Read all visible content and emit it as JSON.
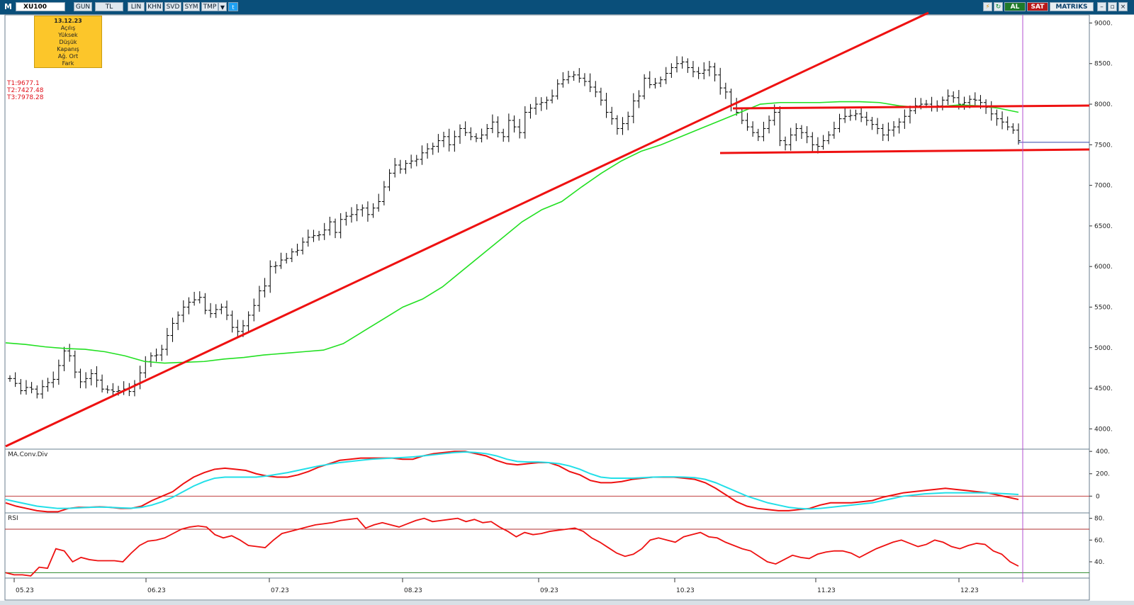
{
  "toolbar": {
    "menu_label": "M",
    "symbol": "XU100",
    "buttons": [
      "GUN",
      "TL",
      "LIN",
      "KHN",
      "SVD",
      "SYM",
      "TMP"
    ],
    "buy_label": "AL",
    "sell_label": "SAT",
    "brand": "MATRIKS",
    "icons": [
      "chevron-down-icon",
      "twitter-icon",
      "lightning-icon",
      "refresh-icon",
      "minimize-icon",
      "restore-icon",
      "close-icon"
    ]
  },
  "info_box": {
    "date": "13.12.23",
    "fields": [
      "Açılış",
      "Yüksek",
      "Düşük",
      "Kapanış",
      "Ağ. Ort",
      "Fark"
    ]
  },
  "trend_labels": [
    "T1:9677.1",
    "T2:7427.48",
    "T3:7978.28"
  ],
  "panels": {
    "macd_label": "MA.Conv.Div",
    "rsi_label": "RSI"
  },
  "colors": {
    "price_bars": "#000000",
    "moving_average": "#22e022",
    "trend_lines": "#ee1111",
    "macd_line": "#ee1111",
    "signal_line": "#22dfe8",
    "rsi_line": "#ee1111",
    "cursor_line": "#b34fd0",
    "info_box": "#fcc62a"
  },
  "chart_data": [
    {
      "type": "line",
      "name": "price",
      "x_ticks": [
        "05.23",
        "06.23",
        "07.23",
        "08.23",
        "09.23",
        "10.23",
        "11.23",
        "12.23"
      ],
      "y_ticks": [
        "9000.",
        "8500.",
        "8000.",
        "7500.",
        "7000.",
        "6500.",
        "6000.",
        "5500.",
        "5000.",
        "4500.",
        "4000."
      ],
      "ylim": [
        3750,
        9100
      ],
      "ohlc_bars": "daily OHLC bars",
      "close_approx": [
        4620,
        4560,
        4470,
        4510,
        4490,
        4430,
        4520,
        4570,
        4610,
        4780,
        4960,
        4900,
        4700,
        4580,
        4620,
        4680,
        4600,
        4490,
        4480,
        4460,
        4470,
        4490,
        4460,
        4550,
        4690,
        4830,
        4900,
        4910,
        4980,
        5150,
        5300,
        5400,
        5500,
        5560,
        5590,
        5620,
        5460,
        5420,
        5470,
        5500,
        5400,
        5250,
        5200,
        5270,
        5400,
        5520,
        5700,
        5760,
        6000,
        6010,
        6080,
        6100,
        6180,
        6200,
        6300,
        6360,
        6380,
        6390,
        6450,
        6550,
        6420,
        6580,
        6620,
        6640,
        6700,
        6720,
        6640,
        6720,
        6800,
        6980,
        7150,
        7250,
        7200,
        7270,
        7300,
        7320,
        7400,
        7450,
        7480,
        7550,
        7600,
        7500,
        7600,
        7700,
        7650,
        7600,
        7580,
        7620,
        7700,
        7780,
        7650,
        7600,
        7800,
        7720,
        7650,
        7900,
        7950,
        8000,
        8020,
        8050,
        8100,
        8250,
        8300,
        8340,
        8360,
        8320,
        8280,
        8210,
        8150,
        8050,
        7900,
        7820,
        7700,
        7760,
        7850,
        8040,
        8100,
        8320,
        8240,
        8260,
        8300,
        8380,
        8450,
        8500,
        8520,
        8450,
        8400,
        8380,
        8420,
        8460,
        8360,
        8200,
        8150,
        8000,
        7900,
        7800,
        7720,
        7650,
        7600,
        7700,
        7800,
        7900,
        7550,
        7500,
        7620,
        7700,
        7650,
        7600,
        7500,
        7480,
        7550,
        7620,
        7700,
        7820,
        7850,
        7860,
        7880,
        7840,
        7800,
        7750,
        7700,
        7620,
        7680,
        7720,
        7780,
        7850,
        7920,
        7980,
        8000,
        8000,
        7960,
        7980,
        8050,
        8100,
        8080,
        8000,
        8020,
        8060,
        8050,
        8020,
        7960,
        7880,
        7820,
        7780,
        7720,
        7680,
        7550
      ],
      "moving_average_approx": [
        5060,
        5040,
        5010,
        4990,
        4980,
        4950,
        4900,
        4830,
        4810,
        4820,
        4830,
        4860,
        4880,
        4910,
        4930,
        4950,
        4970,
        5050,
        5200,
        5350,
        5500,
        5600,
        5750,
        5950,
        6150,
        6350,
        6550,
        6700,
        6800,
        6980,
        7150,
        7300,
        7420,
        7500,
        7600,
        7700,
        7800,
        7900,
        8000,
        8020,
        8020,
        8020,
        8030,
        8030,
        8020,
        7980,
        7960,
        7970,
        7990,
        7980,
        7950,
        7900
      ],
      "trend_lines": [
        {
          "name": "T1",
          "from": [
            "05.23",
            3750
          ],
          "to": [
            "11.23",
            9100
          ]
        },
        {
          "name": "T2",
          "from": [
            "10.23",
            7400
          ],
          "to": [
            "12.23",
            7440
          ]
        },
        {
          "name": "T3",
          "from": [
            "10.23",
            7950
          ],
          "to": [
            "12.23",
            7990
          ]
        }
      ],
      "last_value_line": 7530
    },
    {
      "type": "line",
      "name": "MA.Conv.Div",
      "y_ticks": [
        "400.",
        "200.",
        "0"
      ],
      "ylim": [
        -150,
        420
      ],
      "series": [
        {
          "values": [
            -60,
            -90,
            -110,
            -130,
            -140,
            -140,
            -110,
            -100,
            -100,
            -95,
            -100,
            -110,
            -110,
            -90,
            -40,
            0,
            40,
            110,
            170,
            210,
            240,
            250,
            240,
            230,
            200,
            180,
            170,
            170,
            190,
            220,
            260,
            290,
            320,
            330,
            340,
            340,
            340,
            340,
            330,
            330,
            360,
            380,
            390,
            400,
            400,
            380,
            360,
            320,
            290,
            280,
            290,
            300,
            300,
            270,
            220,
            190,
            140,
            120,
            120,
            130,
            150,
            160,
            170,
            170,
            170,
            160,
            150,
            120,
            70,
            10,
            -50,
            -90,
            -110,
            -120,
            -130,
            -130,
            -120,
            -110,
            -80,
            -60,
            -60,
            -60,
            -50,
            -40,
            -10,
            10,
            30,
            40,
            50,
            60,
            70,
            60,
            50,
            40,
            30,
            10,
            -10,
            -30
          ]
        },
        {
          "values": [
            -30,
            -50,
            -70,
            -90,
            -100,
            -110,
            -110,
            -105,
            -100,
            -98,
            -100,
            -105,
            -108,
            -100,
            -80,
            -50,
            -10,
            40,
            90,
            130,
            160,
            170,
            170,
            170,
            170,
            180,
            195,
            210,
            230,
            250,
            270,
            285,
            300,
            310,
            320,
            330,
            335,
            340,
            345,
            350,
            360,
            370,
            380,
            390,
            395,
            390,
            380,
            360,
            330,
            310,
            305,
            305,
            300,
            290,
            270,
            240,
            200,
            170,
            160,
            160,
            160,
            165,
            170,
            172,
            172,
            170,
            165,
            150,
            120,
            80,
            40,
            0,
            -30,
            -60,
            -80,
            -100,
            -110,
            -115,
            -110,
            -100,
            -90,
            -80,
            -70,
            -60,
            -40,
            -20,
            0,
            10,
            20,
            25,
            30,
            30,
            30,
            30,
            28,
            25,
            20,
            15
          ]
        }
      ]
    },
    {
      "type": "line",
      "name": "RSI",
      "y_ticks": [
        "80.",
        "60.",
        "40."
      ],
      "ylim": [
        25,
        85
      ],
      "reference_levels": [
        70,
        30
      ],
      "values": [
        30,
        28,
        28,
        27,
        35,
        34,
        52,
        50,
        40,
        44,
        42,
        41,
        41,
        41,
        40,
        48,
        55,
        59,
        60,
        62,
        66,
        70,
        72,
        73,
        72,
        65,
        62,
        64,
        60,
        55,
        54,
        53,
        60,
        66,
        68,
        70,
        72,
        74,
        75,
        76,
        78,
        79,
        80,
        71,
        74,
        76,
        74,
        72,
        75,
        78,
        80,
        77,
        78,
        79,
        80,
        77,
        79,
        76,
        77,
        72,
        68,
        63,
        67,
        65,
        66,
        68,
        69,
        70,
        71,
        68,
        62,
        58,
        53,
        48,
        45,
        47,
        52,
        60,
        62,
        60,
        58,
        63,
        65,
        67,
        63,
        62,
        58,
        55,
        52,
        50,
        45,
        40,
        38,
        42,
        46,
        44,
        43,
        47,
        49,
        50,
        50,
        48,
        44,
        48,
        52,
        55,
        58,
        60,
        57,
        54,
        56,
        60,
        58,
        54,
        52,
        55,
        57,
        56,
        50,
        47,
        40,
        36
      ]
    }
  ]
}
